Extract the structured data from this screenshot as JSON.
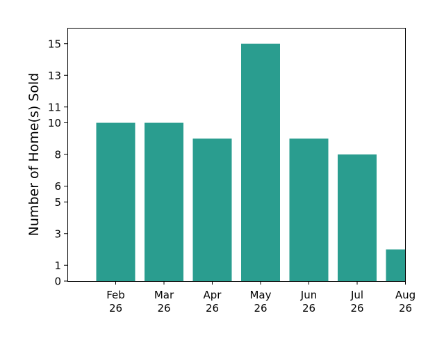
{
  "chart_data": {
    "type": "bar",
    "title": "",
    "xlabel": "",
    "ylabel": "Number of Home(s) Sold",
    "categories": [
      [
        "Feb",
        "26"
      ],
      [
        "Mar",
        "26"
      ],
      [
        "Apr",
        "26"
      ],
      [
        "May",
        "26"
      ],
      [
        "Jun",
        "26"
      ],
      [
        "Jul",
        "26"
      ],
      [
        "Aug",
        "26"
      ]
    ],
    "values": [
      10,
      10,
      9,
      15,
      9,
      8,
      2
    ],
    "bar_color": "#2a9d8f",
    "ylim": [
      0,
      16
    ],
    "yticks": [
      0,
      1,
      3,
      5,
      6,
      8,
      10,
      11,
      13,
      15
    ],
    "grid": false,
    "legend": "none"
  }
}
